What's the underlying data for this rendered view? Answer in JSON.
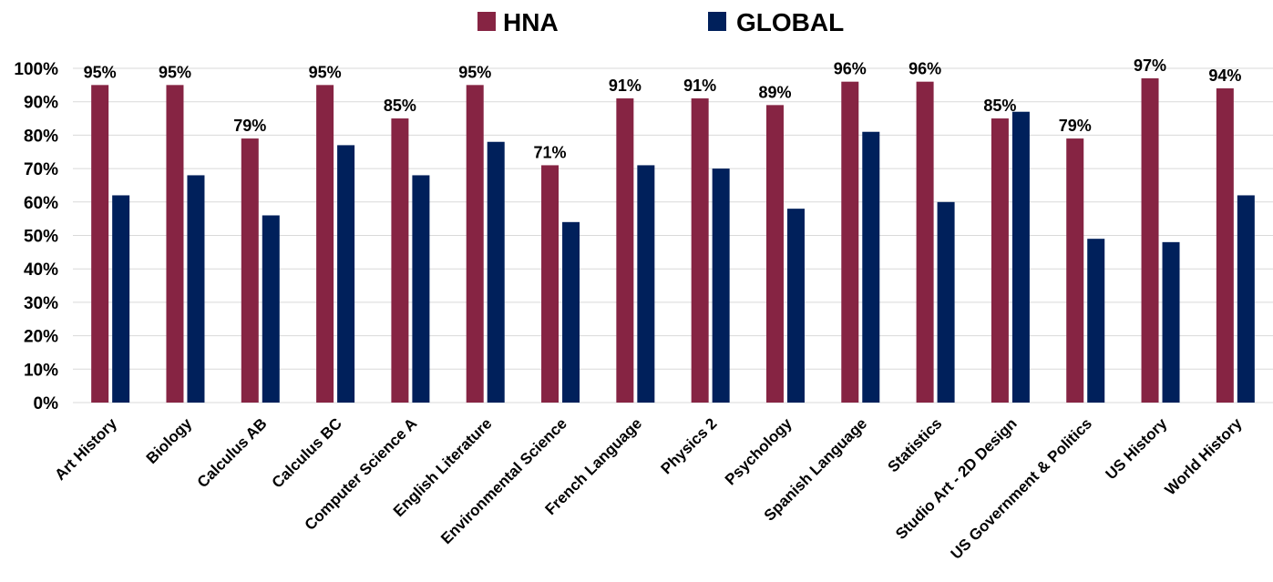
{
  "chart_data": {
    "type": "bar",
    "title": "",
    "xlabel": "",
    "ylabel": "",
    "ylim": [
      0,
      100
    ],
    "yticks": [
      "0%",
      "10%",
      "20%",
      "30%",
      "40%",
      "50%",
      "60%",
      "70%",
      "80%",
      "90%",
      "100%"
    ],
    "grid": "horizontal",
    "legend_position": "top",
    "categories": [
      "Art History",
      "Biology",
      "Calculus AB",
      "Calculus BC",
      "Computer Science A",
      "English Literature",
      "Environmental Science",
      "French Language",
      "Physics 2",
      "Psychology",
      "Spanish Language",
      "Statistics",
      "Studio Art - 2D Design",
      "US Government & Politics",
      "US History",
      "World History"
    ],
    "series": [
      {
        "name": "HNA",
        "color": "#862443",
        "values": [
          95,
          95,
          79,
          95,
          85,
          95,
          71,
          91,
          91,
          89,
          96,
          96,
          85,
          79,
          97,
          94
        ],
        "data_labels": [
          "95%",
          "95%",
          "79%",
          "95%",
          "85%",
          "95%",
          "71%",
          "91%",
          "91%",
          "89%",
          "96%",
          "96%",
          "85%",
          "79%",
          "97%",
          "94%"
        ]
      },
      {
        "name": "GLOBAL",
        "color": "#00205b",
        "values": [
          62,
          68,
          56,
          77,
          68,
          78,
          54,
          71,
          70,
          58,
          81,
          60,
          87,
          49,
          48,
          62
        ]
      }
    ]
  }
}
